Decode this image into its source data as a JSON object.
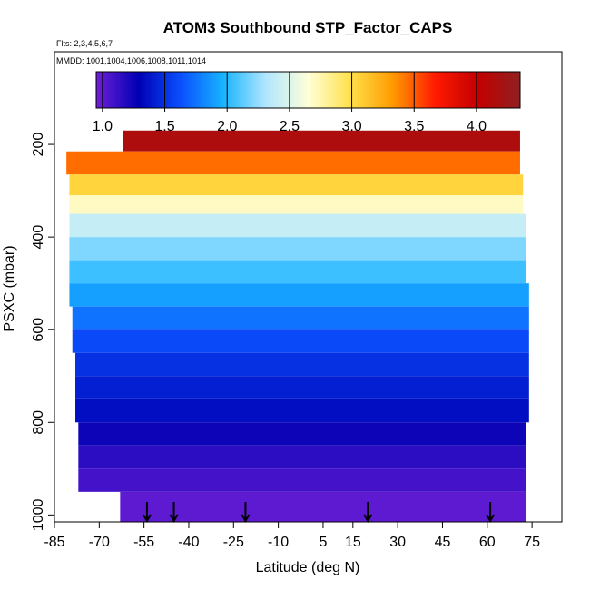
{
  "chart_data": {
    "type": "heatmap",
    "title": "ATOM3 Southbound STP_Factor_CAPS",
    "subtitle_flights": "Flts: 2,3,4,5,6,7",
    "subtitle_dates": "MMDD: 1001,1004,1006,1008,1011,1014",
    "xlabel": "Latitude (deg N)",
    "ylabel": "PSXC (mbar)",
    "xlim": [
      -85,
      85
    ],
    "ylim": [
      1015,
      0
    ],
    "x_ticks": [
      -85,
      -70,
      -55,
      -40,
      -25,
      -10,
      5,
      15,
      30,
      45,
      60,
      75
    ],
    "y_ticks": [
      200,
      400,
      600,
      800,
      1000
    ],
    "colorbar": {
      "range": [
        0.95,
        4.35
      ],
      "ticks": [
        1.0,
        1.5,
        2.0,
        2.5,
        3.0,
        3.5,
        4.0
      ],
      "tick_labels": [
        "1.0",
        "1.5",
        "2.0",
        "2.5",
        "3.0",
        "3.5",
        "4.0"
      ],
      "colors": [
        "#6e1fd6",
        "#0000b4",
        "#0a50ff",
        "#18b4ff",
        "#b0e6ff",
        "#ffffd8",
        "#ffe04a",
        "#ff9a00",
        "#ff1a00",
        "#c30000",
        "#902020"
      ]
    },
    "layers": [
      {
        "p_top": 170,
        "p_bot": 215,
        "lat_min": -62,
        "lat_max": 71,
        "value": 4.15
      },
      {
        "p_top": 215,
        "p_bot": 265,
        "lat_min": -81,
        "lat_max": 71,
        "value": 3.45
      },
      {
        "p_top": 265,
        "p_bot": 310,
        "lat_min": -80,
        "lat_max": 72,
        "value": 3.05
      },
      {
        "p_top": 310,
        "p_bot": 350,
        "lat_min": -80,
        "lat_max": 72,
        "value": 2.7
      },
      {
        "p_top": 350,
        "p_bot": 400,
        "lat_min": -80,
        "lat_max": 73,
        "value": 2.4
      },
      {
        "p_top": 400,
        "p_bot": 450,
        "lat_min": -80,
        "lat_max": 73,
        "value": 2.2
      },
      {
        "p_top": 450,
        "p_bot": 500,
        "lat_min": -80,
        "lat_max": 73,
        "value": 2.05
      },
      {
        "p_top": 500,
        "p_bot": 550,
        "lat_min": -80,
        "lat_max": 74,
        "value": 1.9
      },
      {
        "p_top": 550,
        "p_bot": 600,
        "lat_min": -79,
        "lat_max": 74,
        "value": 1.75
      },
      {
        "p_top": 600,
        "p_bot": 650,
        "lat_min": -79,
        "lat_max": 74,
        "value": 1.6
      },
      {
        "p_top": 650,
        "p_bot": 700,
        "lat_min": -78,
        "lat_max": 74,
        "value": 1.5
      },
      {
        "p_top": 700,
        "p_bot": 750,
        "lat_min": -78,
        "lat_max": 74,
        "value": 1.42
      },
      {
        "p_top": 750,
        "p_bot": 800,
        "lat_min": -78,
        "lat_max": 74,
        "value": 1.35
      },
      {
        "p_top": 800,
        "p_bot": 850,
        "lat_min": -77,
        "lat_max": 73,
        "value": 1.25
      },
      {
        "p_top": 850,
        "p_bot": 900,
        "lat_min": -77,
        "lat_max": 73,
        "value": 1.15
      },
      {
        "p_top": 900,
        "p_bot": 950,
        "lat_min": -77,
        "lat_max": 73,
        "value": 1.08
      },
      {
        "p_top": 950,
        "p_bot": 1015,
        "lat_min": -63,
        "lat_max": 73,
        "value": 1.0
      }
    ],
    "profile_arrow_latitudes": [
      -54,
      -45,
      -21,
      20,
      61
    ]
  }
}
